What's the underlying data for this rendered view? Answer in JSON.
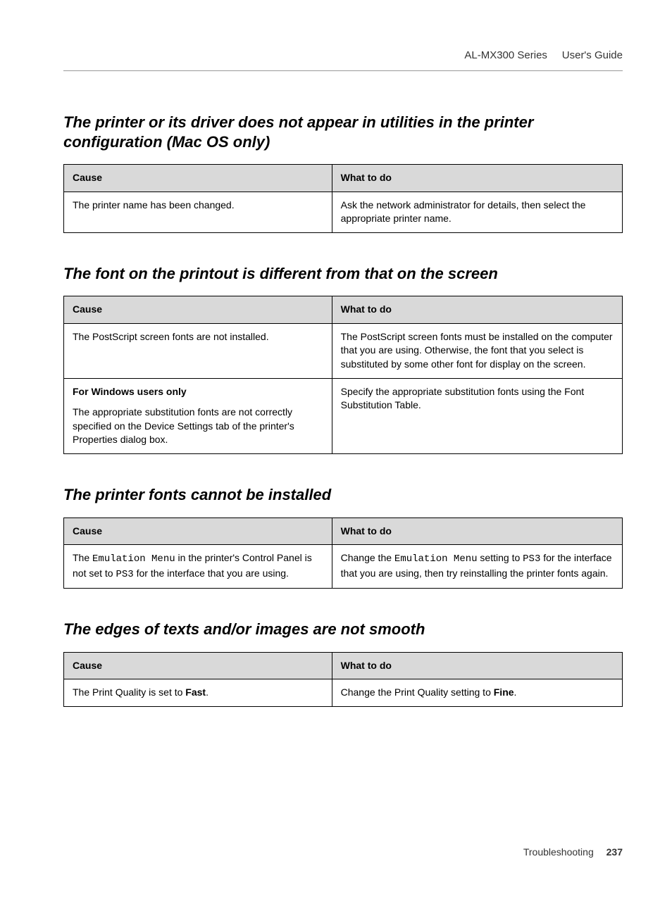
{
  "header": {
    "product": "AL-MX300 Series",
    "guide": "User's Guide"
  },
  "sections": [
    {
      "title": "The printer or its driver does not appear in utilities in the printer configuration (Mac OS only)",
      "table": {
        "headers": [
          "Cause",
          "What to do"
        ],
        "rows": [
          {
            "cause_parts": [
              {
                "text": "The printer name has been changed."
              }
            ],
            "what_parts": [
              {
                "text": "Ask the network administrator for details, then select the appropriate printer name."
              }
            ]
          }
        ]
      }
    },
    {
      "title": "The font on the printout is different from that on the screen",
      "table": {
        "headers": [
          "Cause",
          "What to do"
        ],
        "rows": [
          {
            "cause_parts": [
              {
                "text": "The PostScript screen fonts are not installed."
              }
            ],
            "what_parts": [
              {
                "text": "The PostScript screen fonts must be installed on the computer that you are using. Otherwise, the font that you select is substituted by some other font for display on the screen."
              }
            ]
          },
          {
            "cause_parts": [
              {
                "text": "For Windows users only",
                "bold": true,
                "block": true
              },
              {
                "text": "The appropriate substitution fonts are not correctly specified on the Device Settings tab of the printer's Properties dialog box.",
                "block": true,
                "spaced": true
              }
            ],
            "what_parts": [
              {
                "text": "Specify the appropriate substitution fonts using the Font Substitution Table."
              }
            ]
          }
        ]
      }
    },
    {
      "title": "The printer fonts cannot be installed",
      "table": {
        "headers": [
          "Cause",
          "What to do"
        ],
        "rows": [
          {
            "cause_parts": [
              {
                "text": "The "
              },
              {
                "text": "Emulation Menu",
                "mono": true
              },
              {
                "text": " in the printer's Control Panel is not set to "
              },
              {
                "text": "PS3",
                "mono": true
              },
              {
                "text": " for the interface that you are using."
              }
            ],
            "what_parts": [
              {
                "text": "Change the "
              },
              {
                "text": "Emulation Menu",
                "mono": true
              },
              {
                "text": " setting to "
              },
              {
                "text": "PS3",
                "mono": true
              },
              {
                "text": " for the interface that you are using, then try reinstalling the printer fonts again."
              }
            ]
          }
        ]
      }
    },
    {
      "title": "The edges of texts and/or images are not smooth",
      "table": {
        "headers": [
          "Cause",
          "What to do"
        ],
        "rows": [
          {
            "cause_parts": [
              {
                "text": "The Print Quality is set to "
              },
              {
                "text": "Fast",
                "bold": true
              },
              {
                "text": "."
              }
            ],
            "what_parts": [
              {
                "text": "Change the Print Quality setting to "
              },
              {
                "text": "Fine",
                "bold": true
              },
              {
                "text": "."
              }
            ]
          }
        ]
      }
    }
  ],
  "footer": {
    "section": "Troubleshooting",
    "page": "237"
  },
  "style": {
    "page_bg": "#ffffff",
    "header_bg": "#d9d9d9",
    "border_color": "#000000",
    "title_fontsize": 22,
    "body_fontsize": 14
  }
}
